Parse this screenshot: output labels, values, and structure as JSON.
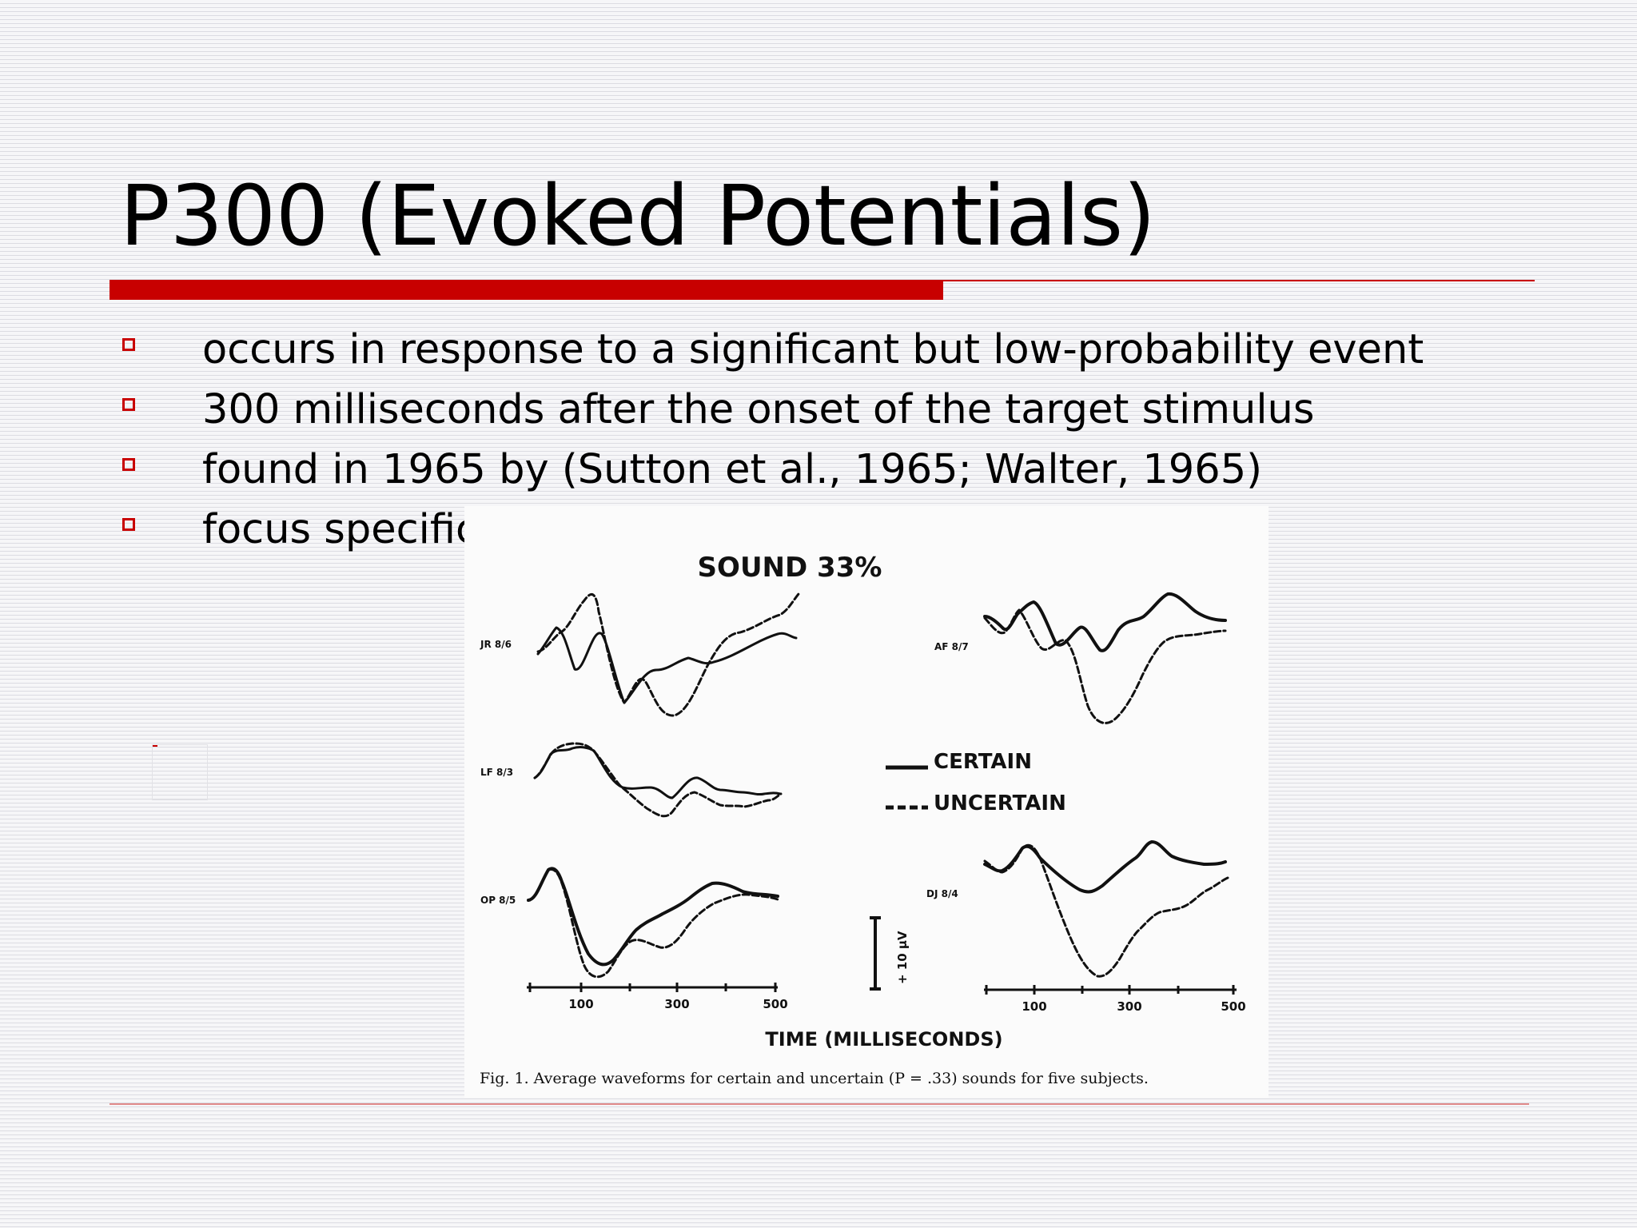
{
  "slide": {
    "title": "P300 (Evoked Potentials)",
    "accent_color": "#c80000",
    "bullets": [
      "occurs in response to a significant but low-probability event",
      "300 milliseconds after the onset of the target stimulus",
      "found in 1965 by (Sutton et al., 1965; Walter, 1965)",
      "focus specific"
    ],
    "bullet_icon": "hollow-square-icon"
  },
  "figure": {
    "title": "SOUND 33%",
    "legend": {
      "certain": "CERTAIN",
      "uncertain": "UNCERTAIN"
    },
    "subjects": [
      "JR 8/6",
      "AF 8/7",
      "LF 8/3",
      "OP 8/5",
      "DJ 8/4"
    ],
    "ticks": [
      "100",
      "300",
      "500"
    ],
    "scale_label": "+ 10 μV",
    "axis_label": "TIME (MILLISECONDS)",
    "caption": "Fig. 1. Average waveforms for certain and uncertain (P = .33) sounds for five subjects."
  }
}
